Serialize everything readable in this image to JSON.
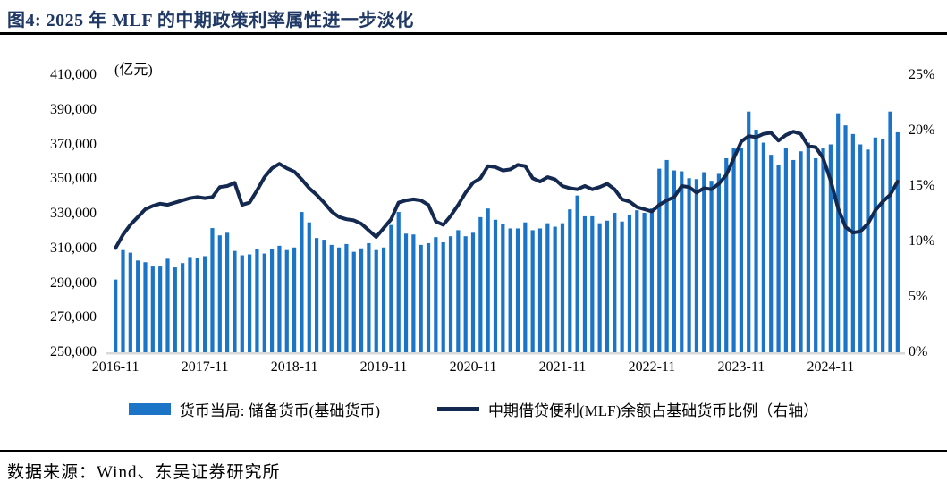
{
  "title": "图4:  2025 年 MLF 的中期政策利率属性进一步淡化",
  "source": "数据来源：Wind、东吴证券研究所",
  "colors": {
    "bar": "#1B74C5",
    "line": "#14294F",
    "title_text": "#1F3864",
    "baseline": "#D9D9D9",
    "rule": "#000000"
  },
  "legend": [
    {
      "label": "货币当局: 储备货币(基础货币)",
      "type": "bar"
    },
    {
      "label": "中期借贷便利(MLF)余额占基础货币比例（右轴）",
      "type": "line"
    }
  ],
  "chart_data": {
    "type": "combo-bar-line",
    "title": "图4: 2025 年 MLF 的中期政策利率属性进一步淡化",
    "left_axis": {
      "label": "(亿元)",
      "range": [
        250000,
        410000
      ],
      "ticks": [
        {
          "label": "250,000",
          "value": 250000
        },
        {
          "label": "270,000",
          "value": 270000
        },
        {
          "label": "290,000",
          "value": 290000
        },
        {
          "label": "310,000",
          "value": 310000
        },
        {
          "label": "330,000",
          "value": 330000
        },
        {
          "label": "350,000",
          "value": 350000
        },
        {
          "label": "370,000",
          "value": 370000
        },
        {
          "label": "390,000",
          "value": 390000
        },
        {
          "label": "410,000",
          "value": 410000
        }
      ]
    },
    "right_axis": {
      "range": [
        0,
        25
      ],
      "ticks": [
        {
          "label": "0%",
          "value": 0
        },
        {
          "label": "5%",
          "value": 5
        },
        {
          "label": "10%",
          "value": 10
        },
        {
          "label": "15%",
          "value": 15
        },
        {
          "label": "20%",
          "value": 20
        },
        {
          "label": "25%",
          "value": 25
        }
      ]
    },
    "x_ticks": [
      "2016-11",
      "2017-11",
      "2018-11",
      "2019-11",
      "2020-11",
      "2021-11",
      "2022-11",
      "2023-11",
      "2024-11"
    ],
    "grid": false,
    "legend_position": "bottom",
    "categories": [
      "2016-11",
      "2016-12",
      "2017-01",
      "2017-02",
      "2017-03",
      "2017-04",
      "2017-05",
      "2017-06",
      "2017-07",
      "2017-08",
      "2017-09",
      "2017-10",
      "2017-11",
      "2017-12",
      "2018-01",
      "2018-02",
      "2018-03",
      "2018-04",
      "2018-05",
      "2018-06",
      "2018-07",
      "2018-08",
      "2018-09",
      "2018-10",
      "2018-11",
      "2018-12",
      "2019-01",
      "2019-02",
      "2019-03",
      "2019-04",
      "2019-05",
      "2019-06",
      "2019-07",
      "2019-08",
      "2019-09",
      "2019-10",
      "2019-11",
      "2019-12",
      "2020-01",
      "2020-02",
      "2020-03",
      "2020-04",
      "2020-05",
      "2020-06",
      "2020-07",
      "2020-08",
      "2020-09",
      "2020-10",
      "2020-11",
      "2020-12",
      "2021-01",
      "2021-02",
      "2021-03",
      "2021-04",
      "2021-05",
      "2021-06",
      "2021-07",
      "2021-08",
      "2021-09",
      "2021-10",
      "2021-11",
      "2021-12",
      "2022-01",
      "2022-02",
      "2022-03",
      "2022-04",
      "2022-05",
      "2022-06",
      "2022-07",
      "2022-08",
      "2022-09",
      "2022-10",
      "2022-11",
      "2022-12",
      "2023-01",
      "2023-02",
      "2023-03",
      "2023-04",
      "2023-05",
      "2023-06",
      "2023-07",
      "2023-08",
      "2023-09",
      "2023-10",
      "2023-11",
      "2023-12",
      "2024-01",
      "2024-02",
      "2024-03",
      "2024-04",
      "2024-05",
      "2024-06",
      "2024-07",
      "2024-08",
      "2024-09",
      "2024-10",
      "2024-11",
      "2024-12",
      "2025-01",
      "2025-02",
      "2025-03",
      "2025-04",
      "2025-05",
      "2025-06",
      "2025-07",
      "2025-08"
    ],
    "series": [
      {
        "name": "货币当局: 储备货币(基础货币)",
        "type": "bar",
        "axis": "left",
        "unit": "亿元",
        "values": [
          292000,
          309000,
          307500,
          303000,
          302000,
          299500,
          299500,
          304000,
          299000,
          301500,
          305000,
          304500,
          305500,
          321700,
          317500,
          319000,
          308500,
          306000,
          306500,
          309500,
          307000,
          309500,
          311500,
          309000,
          310500,
          331000,
          325000,
          316000,
          315000,
          312000,
          310500,
          312500,
          308000,
          310000,
          313000,
          309000,
          310500,
          323500,
          331000,
          318500,
          318000,
          312000,
          313000,
          316500,
          313500,
          317000,
          320500,
          317000,
          319000,
          328000,
          333000,
          326500,
          324000,
          321500,
          321500,
          325000,
          320500,
          321500,
          324500,
          322500,
          324500,
          332500,
          340500,
          328500,
          328500,
          324500,
          326000,
          330500,
          325500,
          329000,
          332000,
          330500,
          333000,
          356000,
          361000,
          355000,
          354500,
          350500,
          350000,
          354000,
          349000,
          353000,
          362000,
          368000,
          368000,
          389000,
          378500,
          371000,
          364000,
          358000,
          368000,
          361000,
          366000,
          371000,
          362000,
          368000,
          370000,
          388000,
          381000,
          376000,
          370000,
          367000,
          374000,
          373000,
          389000,
          377000
        ]
      },
      {
        "name": "中期借贷便利(MLF)余额占基础货币比例（右轴）",
        "type": "line",
        "axis": "right",
        "unit": "%",
        "values": [
          9.4,
          10.6,
          11.5,
          12.2,
          12.9,
          13.2,
          13.4,
          13.3,
          13.5,
          13.7,
          13.9,
          14.0,
          13.9,
          14.0,
          14.9,
          15.0,
          15.3,
          13.3,
          13.5,
          14.6,
          15.8,
          16.6,
          17.0,
          16.6,
          16.3,
          15.6,
          14.8,
          14.2,
          13.5,
          12.7,
          12.2,
          12.0,
          11.9,
          11.6,
          11.0,
          10.4,
          11.2,
          12.0,
          13.5,
          13.7,
          13.8,
          13.7,
          13.3,
          11.8,
          11.5,
          12.3,
          13.3,
          14.4,
          15.3,
          15.7,
          16.8,
          16.7,
          16.4,
          16.5,
          16.9,
          16.8,
          15.7,
          15.4,
          15.8,
          15.6,
          15.0,
          14.8,
          14.7,
          15.0,
          14.7,
          14.9,
          15.2,
          14.7,
          13.8,
          13.6,
          13.1,
          12.9,
          12.7,
          13.3,
          13.7,
          14.0,
          15.0,
          14.9,
          14.4,
          14.8,
          14.7,
          15.2,
          16.0,
          17.5,
          19.0,
          19.5,
          19.4,
          19.7,
          19.8,
          19.1,
          19.6,
          19.9,
          19.7,
          18.6,
          18.5,
          17.5,
          15.5,
          13.0,
          11.3,
          10.8,
          10.9,
          11.6,
          12.8,
          13.6,
          14.2,
          15.4
        ]
      }
    ]
  }
}
